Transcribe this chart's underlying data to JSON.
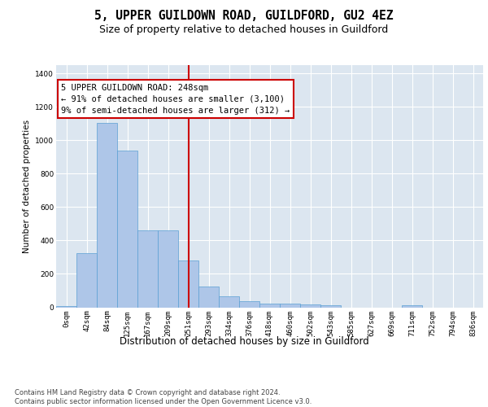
{
  "title": "5, UPPER GUILDOWN ROAD, GUILDFORD, GU2 4EZ",
  "subtitle": "Size of property relative to detached houses in Guildford",
  "xlabel": "Distribution of detached houses by size in Guildford",
  "ylabel": "Number of detached properties",
  "categories": [
    "0sqm",
    "42sqm",
    "84sqm",
    "125sqm",
    "167sqm",
    "209sqm",
    "251sqm",
    "293sqm",
    "334sqm",
    "376sqm",
    "418sqm",
    "460sqm",
    "502sqm",
    "543sqm",
    "585sqm",
    "627sqm",
    "669sqm",
    "711sqm",
    "752sqm",
    "794sqm",
    "836sqm"
  ],
  "values": [
    8,
    325,
    1105,
    940,
    460,
    460,
    280,
    125,
    65,
    38,
    20,
    20,
    18,
    12,
    0,
    0,
    0,
    10,
    0,
    0,
    0
  ],
  "bar_color": "#aec6e8",
  "bar_edge_color": "#5a9fd4",
  "vline_bin_index": 6,
  "vline_color": "#cc0000",
  "annotation_line1": "5 UPPER GUILDOWN ROAD: 248sqm",
  "annotation_line2": "← 91% of detached houses are smaller (3,100)",
  "annotation_line3": "9% of semi-detached houses are larger (312) →",
  "annotation_box_color": "#cc0000",
  "ylim": [
    0,
    1450
  ],
  "yticks": [
    0,
    200,
    400,
    600,
    800,
    1000,
    1200,
    1400
  ],
  "background_color": "#dce6f0",
  "footer_line1": "Contains HM Land Registry data © Crown copyright and database right 2024.",
  "footer_line2": "Contains public sector information licensed under the Open Government Licence v3.0.",
  "title_fontsize": 10.5,
  "subtitle_fontsize": 9,
  "xlabel_fontsize": 8.5,
  "ylabel_fontsize": 7.5,
  "tick_fontsize": 6.5,
  "annotation_fontsize": 7.5,
  "footer_fontsize": 6
}
